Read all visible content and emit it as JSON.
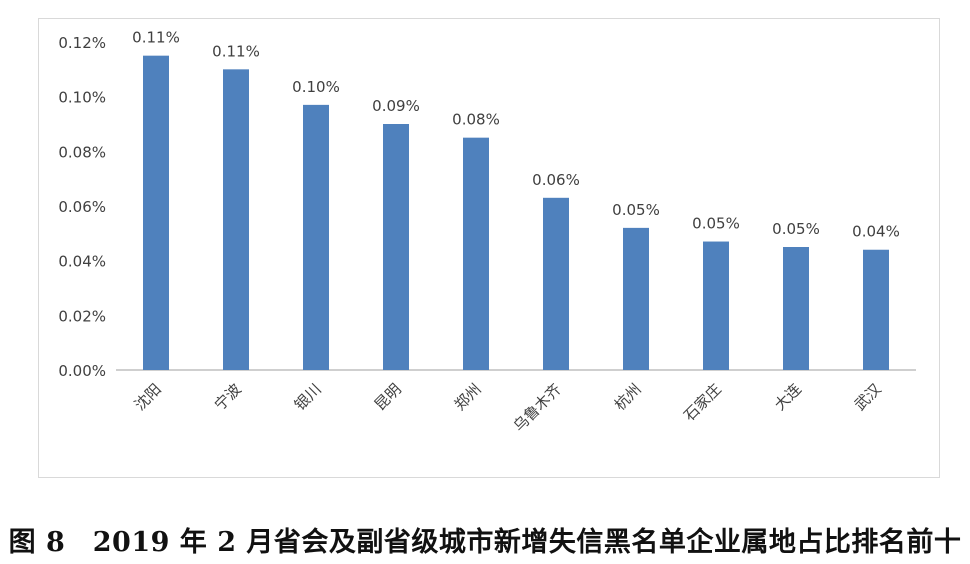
{
  "caption": "图 8　2019 年 2 月省会及副省级城市新增失信黑名单企业属地占比排名前十",
  "chart_data": {
    "type": "bar",
    "categories": [
      "沈阳",
      "宁波",
      "银川",
      "昆明",
      "郑州",
      "乌鲁木齐",
      "杭州",
      "石家庄",
      "大连",
      "武汉"
    ],
    "values": [
      0.115,
      0.11,
      0.097,
      0.09,
      0.085,
      0.063,
      0.052,
      0.047,
      0.045,
      0.044
    ],
    "data_labels": [
      "0.11%",
      "0.11%",
      "0.10%",
      "0.09%",
      "0.08%",
      "0.06%",
      "0.05%",
      "0.05%",
      "0.05%",
      "0.04%"
    ],
    "y_ticks": [
      "0.00%",
      "0.02%",
      "0.04%",
      "0.06%",
      "0.08%",
      "0.10%",
      "0.12%"
    ],
    "y_unit": "%",
    "ylim": [
      0,
      0.12
    ],
    "grid": false,
    "legend": "none",
    "bar_color": "#4f81bd",
    "axis_color": "#bfbfbf",
    "text_color": "#404040"
  }
}
